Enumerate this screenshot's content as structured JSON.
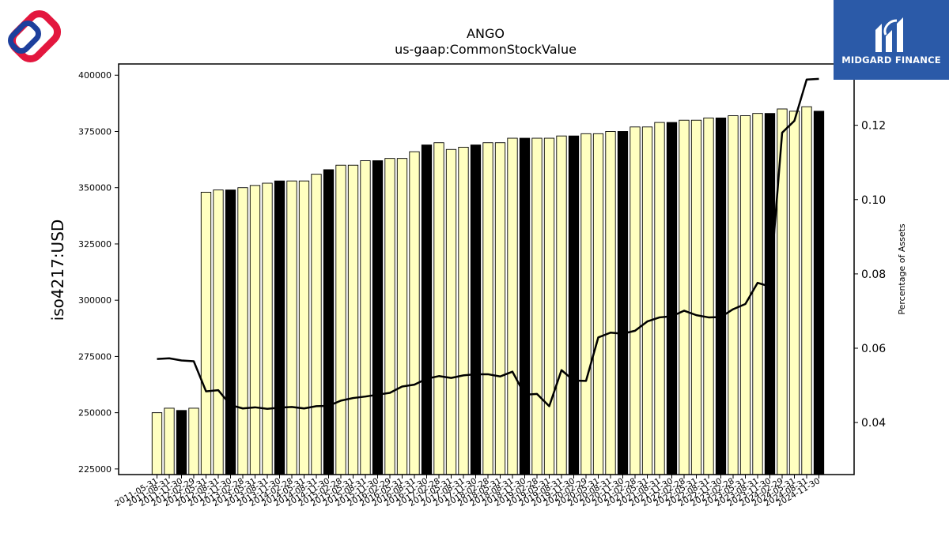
{
  "brand": {
    "name": "MIDGARD FINANCE",
    "colors": {
      "box": "#2b5aa8",
      "logo_red": "#e3173e",
      "logo_blue": "#1d3f9c"
    }
  },
  "chart_data": {
    "type": "bar",
    "title": "ANGO",
    "subtitle": "us-gaap:CommonStockValue",
    "ylabel": "iso4217:USD",
    "y2label": "Percentage of Assets",
    "ylim": [
      222500,
      405000
    ],
    "y2lim": [
      0.026,
      0.1365
    ],
    "yticks": [
      225000,
      250000,
      275000,
      300000,
      325000,
      350000,
      375000,
      400000
    ],
    "y2ticks": [
      0.04,
      0.06,
      0.08,
      0.1,
      0.12
    ],
    "y2tick_labels": [
      "0.04",
      "0.06",
      "0.08",
      "0.10",
      "0.12"
    ],
    "bar_color": "#ffffc0",
    "bar_highlight_color": "#000000",
    "line_color": "#000000",
    "grid": false,
    "legend": "none",
    "categories": [
      "2011-05-31",
      "2011-08-31",
      "2011-11-30",
      "2012-02-29",
      "2012-05-31",
      "2012-08-31",
      "2012-11-30",
      "2013-02-28",
      "2013-05-31",
      "2013-08-31",
      "2013-11-30",
      "2014-02-28",
      "2014-05-31",
      "2014-08-31",
      "2014-11-30",
      "2015-02-28",
      "2015-05-31",
      "2015-08-31",
      "2015-11-30",
      "2016-02-29",
      "2016-05-31",
      "2016-08-31",
      "2016-11-30",
      "2017-02-28",
      "2017-05-31",
      "2017-08-31",
      "2017-11-30",
      "2018-02-28",
      "2018-05-31",
      "2018-08-31",
      "2018-11-30",
      "2019-02-28",
      "2019-05-31",
      "2019-08-31",
      "2019-11-30",
      "2020-02-29",
      "2020-05-31",
      "2020-08-31",
      "2020-11-30",
      "2021-02-28",
      "2021-05-31",
      "2021-08-31",
      "2021-11-30",
      "2022-02-28",
      "2022-05-31",
      "2022-08-31",
      "2022-11-30",
      "2023-02-28",
      "2023-05-31",
      "2023-08-31",
      "2023-11-30",
      "2024-02-29",
      "2024-05-31",
      "2024-08-31",
      "2024-11-30"
    ],
    "values": [
      250000,
      252000,
      251000,
      252000,
      348000,
      349000,
      349000,
      350000,
      351000,
      352000,
      353000,
      353000,
      353000,
      356000,
      358000,
      360000,
      360000,
      362000,
      362000,
      363000,
      363000,
      366000,
      369000,
      370000,
      367000,
      368000,
      369000,
      370000,
      370000,
      372000,
      372000,
      372000,
      372000,
      373000,
      373000,
      374000,
      374000,
      375000,
      375000,
      377000,
      377000,
      379000,
      379000,
      380000,
      380000,
      381000,
      381000,
      382000,
      382000,
      383000,
      383000,
      385000,
      384000,
      386000,
      384000
    ],
    "highlight": [
      false,
      false,
      true,
      false,
      false,
      false,
      true,
      false,
      false,
      false,
      true,
      false,
      false,
      false,
      true,
      false,
      false,
      false,
      true,
      false,
      false,
      false,
      true,
      false,
      false,
      false,
      true,
      false,
      false,
      false,
      true,
      false,
      false,
      false,
      true,
      false,
      false,
      false,
      true,
      false,
      false,
      false,
      true,
      false,
      false,
      false,
      true,
      false,
      false,
      false,
      true,
      false,
      false,
      false,
      true
    ],
    "series": [
      {
        "type": "line",
        "axis": "right",
        "values": [
          0.0571,
          0.0573,
          0.0567,
          0.0565,
          0.0484,
          0.0487,
          0.0447,
          0.0438,
          0.0441,
          0.0437,
          0.044,
          0.0442,
          0.0438,
          0.0444,
          0.0445,
          0.0459,
          0.0466,
          0.047,
          0.0475,
          0.048,
          0.0497,
          0.0502,
          0.0518,
          0.0525,
          0.052,
          0.0527,
          0.053,
          0.053,
          0.0524,
          0.0537,
          0.0475,
          0.0477,
          0.0444,
          0.0541,
          0.0513,
          0.0512,
          0.0629,
          0.0642,
          0.0639,
          0.0647,
          0.0672,
          0.0683,
          0.0686,
          0.0701,
          0.0689,
          0.0683,
          0.0684,
          0.0705,
          0.0719,
          0.0776,
          0.0766,
          0.118,
          0.1212,
          0.1323,
          0.1325
        ]
      }
    ]
  }
}
